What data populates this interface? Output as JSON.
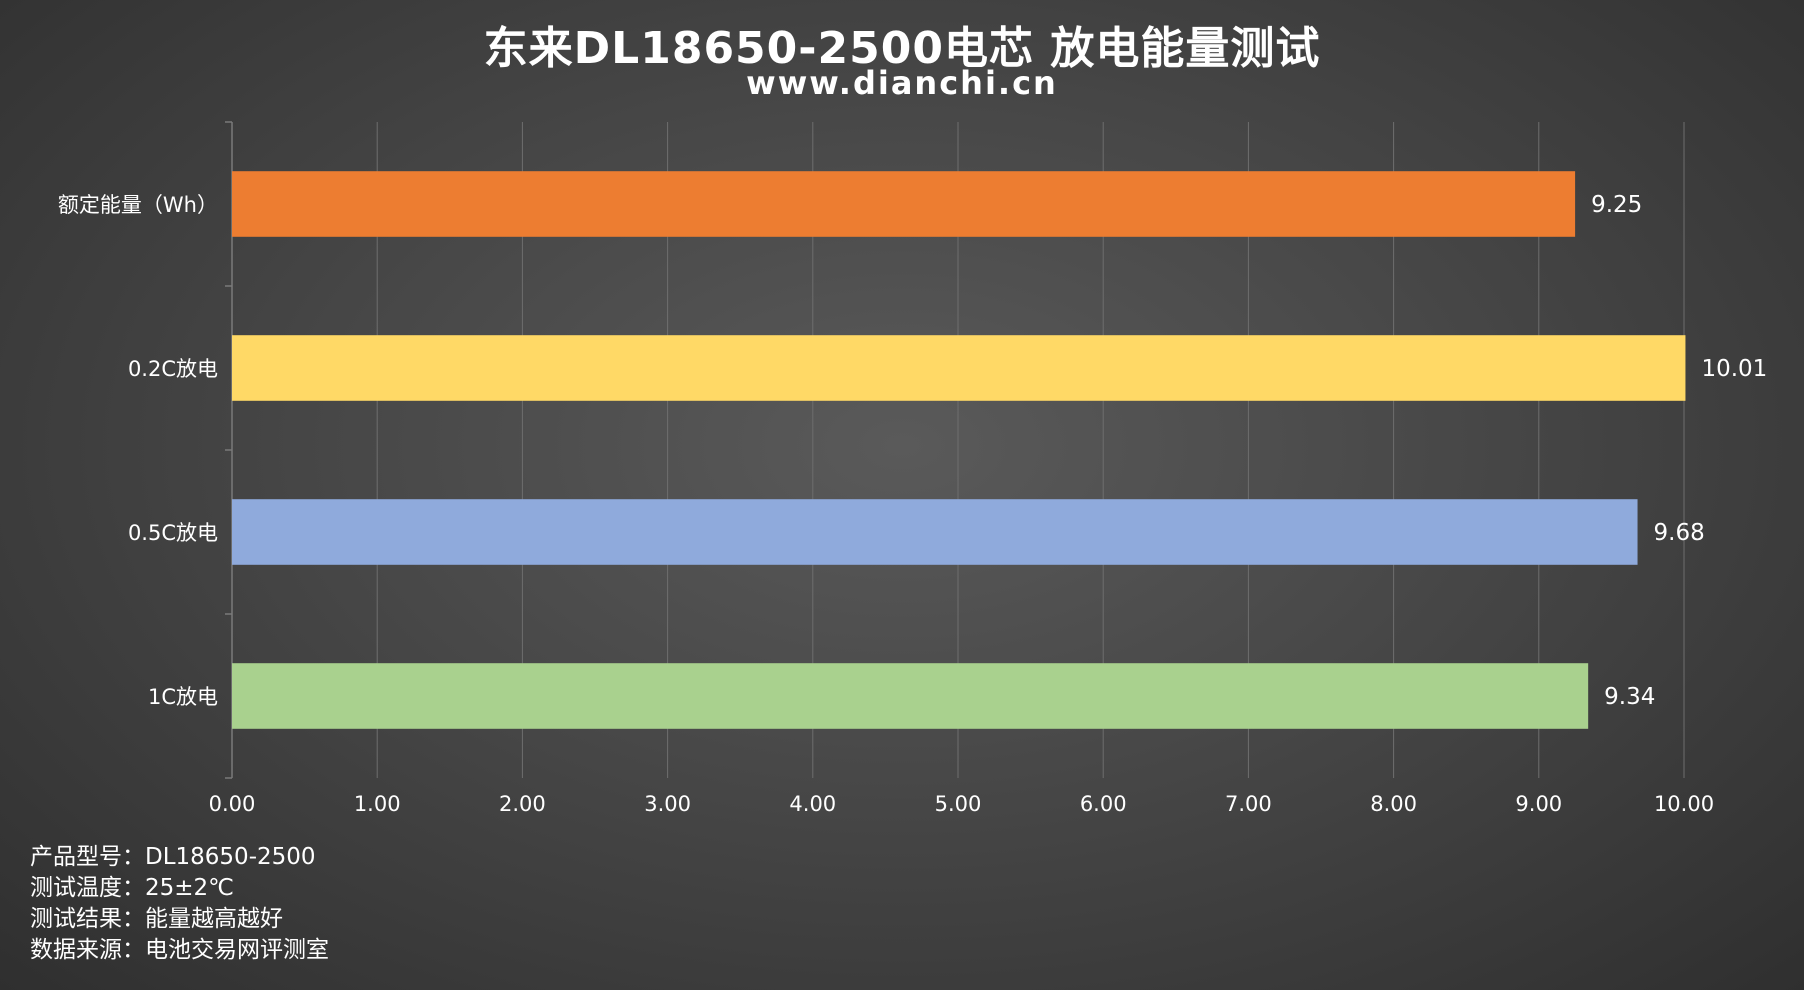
{
  "title": "东来DL18650-2500电芯 放电能量测试",
  "subtitle": "www.dianchi.cn",
  "chart_data": {
    "type": "bar",
    "orientation": "horizontal",
    "categories": [
      "额定能量（Wh）",
      "0.2C放电",
      "0.5C放电",
      "1C放电"
    ],
    "values": [
      9.25,
      10.01,
      9.68,
      9.34
    ],
    "value_labels": [
      "9.25",
      "10.01",
      "9.68",
      "9.34"
    ],
    "colors": [
      "#ED7D31",
      "#FFD966",
      "#8FAADC",
      "#A9D18E"
    ],
    "xlim": [
      0,
      10
    ],
    "xticks": [
      "0.00",
      "1.00",
      "2.00",
      "3.00",
      "4.00",
      "5.00",
      "6.00",
      "7.00",
      "8.00",
      "9.00",
      "10.00"
    ],
    "grid": true,
    "legend": false
  },
  "notes": [
    "产品型号：DL18650-2500",
    "测试温度：25±2℃",
    "测试结果：能量越高越好",
    "数据来源：电池交易网评测室"
  ]
}
